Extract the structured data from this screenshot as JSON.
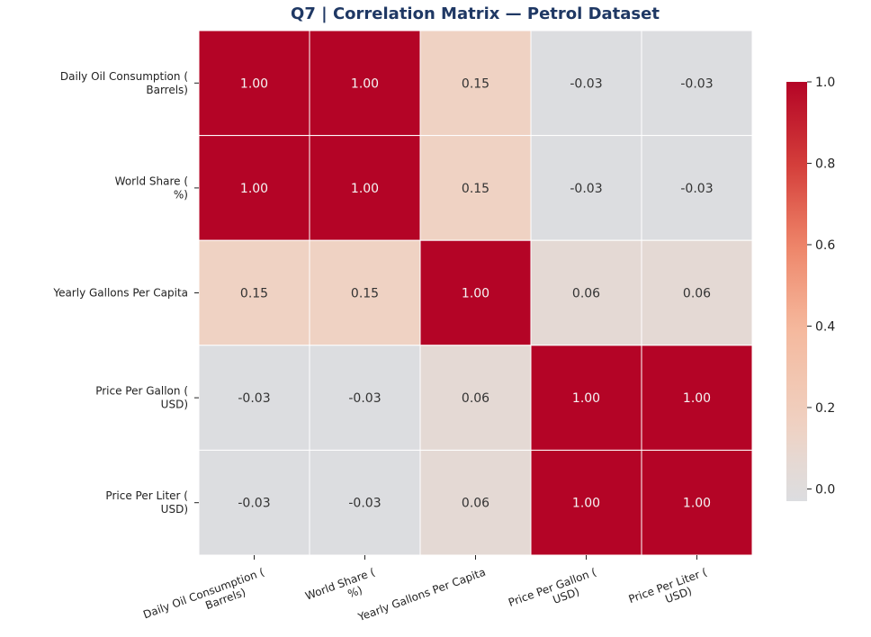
{
  "chart_data": {
    "type": "heatmap",
    "title": "Q7 | Correlation Matrix — Petrol Dataset",
    "row_labels": [
      [
        "Daily Oil Consumption (",
        "Barrels)"
      ],
      [
        "World Share (",
        "%)"
      ],
      [
        "Yearly Gallons Per Capita"
      ],
      [
        "Price Per Gallon (",
        "USD)"
      ],
      [
        "Price Per Liter (",
        "USD)"
      ]
    ],
    "col_labels": [
      [
        "Daily Oil Consumption (",
        "Barrels)"
      ],
      [
        "World Share (",
        "%)"
      ],
      [
        "Yearly Gallons Per Capita"
      ],
      [
        "Price Per Gallon (",
        "USD)"
      ],
      [
        "Price Per Liter (",
        "USD)"
      ]
    ],
    "values": [
      [
        1.0,
        1.0,
        0.15,
        -0.03,
        -0.03
      ],
      [
        1.0,
        1.0,
        0.15,
        -0.03,
        -0.03
      ],
      [
        0.15,
        0.15,
        1.0,
        0.06,
        0.06
      ],
      [
        -0.03,
        -0.03,
        0.06,
        1.0,
        1.0
      ],
      [
        -0.03,
        -0.03,
        0.06,
        1.0,
        1.0
      ]
    ],
    "cell_text": [
      [
        "1.00",
        "1.00",
        "0.15",
        "-0.03",
        "-0.03"
      ],
      [
        "1.00",
        "1.00",
        "0.15",
        "-0.03",
        "-0.03"
      ],
      [
        "0.15",
        "0.15",
        "1.00",
        "0.06",
        "0.06"
      ],
      [
        "-0.03",
        "-0.03",
        "0.06",
        "1.00",
        "1.00"
      ],
      [
        "-0.03",
        "-0.03",
        "0.06",
        "1.00",
        "1.00"
      ]
    ],
    "colormap": "coolwarm-like (red for high, gray near zero)",
    "colorbar": {
      "range": [
        -0.03,
        1.0
      ],
      "ticks": [
        0.0,
        0.2,
        0.4,
        0.6,
        0.8,
        1.0
      ],
      "tick_labels": [
        "0.0",
        "0.2",
        "0.4",
        "0.6",
        "0.8",
        "1.0"
      ],
      "placement": "right"
    },
    "grid": false
  },
  "colors": {
    "title": "#1f3864",
    "cell_border": "#ffffff",
    "dark_text": "#333333",
    "light_text": "#f5f5f5",
    "stops": [
      {
        "v": -0.03,
        "c": "#dcdde0"
      },
      {
        "v": 0.06,
        "c": "#e4d9d4"
      },
      {
        "v": 0.15,
        "c": "#efd2c3"
      },
      {
        "v": 0.4,
        "c": "#f5b89c"
      },
      {
        "v": 0.6,
        "c": "#ee8468"
      },
      {
        "v": 0.8,
        "c": "#d33d3a"
      },
      {
        "v": 1.0,
        "c": "#b40426"
      }
    ]
  }
}
